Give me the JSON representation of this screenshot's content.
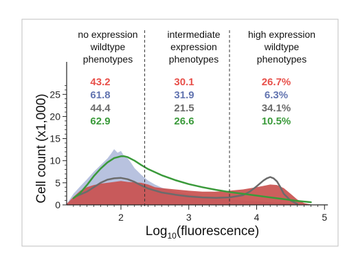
{
  "chart_data": {
    "type": "area",
    "xlabel_main": "Log",
    "xlabel_sub": "10",
    "xlabel_rest": "(fluorescence)",
    "ylabel": "Cell count (x1,000)",
    "xlim": [
      1.2,
      5.2
    ],
    "ylim": [
      0,
      28
    ],
    "x_ticks": [
      2,
      3,
      4,
      5
    ],
    "y_ticks": [
      0,
      5,
      10,
      15,
      20,
      25
    ],
    "gates": [
      2.35,
      3.6
    ],
    "region_labels": [
      {
        "lines": [
          "no expression",
          "wildtype",
          "phenotypes"
        ]
      },
      {
        "lines": [
          "intermediate",
          "expression",
          "phenotypes"
        ]
      },
      {
        "lines": [
          "high expression",
          "wildtype",
          "phenotypes"
        ]
      }
    ],
    "percent_table": {
      "colors": [
        "#e8504a",
        "#6274b0",
        "#6b6b6b",
        "#3a9a3a"
      ],
      "rows": [
        [
          "43.2",
          "30.1",
          "26.7%"
        ],
        [
          "61.8",
          "31.9",
          "6.3%"
        ],
        [
          "44.4",
          "21.5",
          "34.1%"
        ],
        [
          "62.9",
          "26.6",
          "10.5%"
        ]
      ]
    },
    "series": [
      {
        "style": "filled-histogram",
        "color": "#b8c2df",
        "x": [
          1.2,
          1.3,
          1.4,
          1.5,
          1.6,
          1.7,
          1.8,
          1.85,
          1.9,
          1.95,
          2.0,
          2.05,
          2.1,
          2.15,
          2.2,
          2.3,
          2.4,
          2.5,
          2.6,
          2.8,
          3.0,
          3.2,
          3.4,
          3.6,
          3.8,
          4.0,
          4.2,
          4.4,
          4.6
        ],
        "values": [
          0.2,
          2.5,
          4.2,
          5.8,
          7.5,
          9.0,
          10.5,
          11.5,
          12.6,
          11.8,
          12.2,
          11.0,
          10.5,
          9.5,
          8.3,
          6.8,
          5.5,
          4.6,
          3.9,
          3.0,
          2.4,
          1.9,
          1.5,
          1.2,
          1.0,
          0.8,
          0.6,
          0.4,
          0.2
        ]
      },
      {
        "style": "filled-histogram",
        "color": "#c9514f",
        "x": [
          1.2,
          1.3,
          1.4,
          1.5,
          1.6,
          1.7,
          1.8,
          1.9,
          2.0,
          2.1,
          2.2,
          2.3,
          2.4,
          2.5,
          2.6,
          2.8,
          3.0,
          3.2,
          3.4,
          3.6,
          3.8,
          4.0,
          4.1,
          4.2,
          4.3,
          4.4,
          4.5,
          4.6,
          4.7,
          4.8,
          4.9
        ],
        "values": [
          0.2,
          1.8,
          3.2,
          4.0,
          4.5,
          4.8,
          5.0,
          5.2,
          5.4,
          5.2,
          5.1,
          5.0,
          4.6,
          4.0,
          3.8,
          3.5,
          3.2,
          3.0,
          3.0,
          3.2,
          3.5,
          4.0,
          4.3,
          4.6,
          4.5,
          3.8,
          2.5,
          1.2,
          0.4,
          0.1,
          0.0
        ]
      },
      {
        "style": "line",
        "color": "#6b6b6b",
        "x": [
          1.35,
          1.5,
          1.6,
          1.7,
          1.8,
          1.9,
          2.0,
          2.1,
          2.2,
          2.3,
          2.4,
          2.6,
          2.8,
          3.0,
          3.2,
          3.4,
          3.6,
          3.8,
          3.9,
          4.0,
          4.1,
          4.15,
          4.2,
          4.25,
          4.3,
          4.35,
          4.4,
          4.5,
          4.6
        ],
        "values": [
          2.0,
          3.0,
          4.0,
          5.0,
          5.7,
          6.0,
          6.1,
          5.8,
          5.2,
          4.4,
          3.7,
          2.8,
          2.3,
          1.9,
          1.7,
          1.6,
          1.7,
          2.2,
          3.0,
          4.2,
          5.5,
          6.0,
          6.3,
          6.0,
          5.3,
          4.0,
          2.5,
          1.0,
          0.2
        ]
      },
      {
        "style": "line",
        "color": "#3a9a3a",
        "x": [
          1.3,
          1.4,
          1.5,
          1.6,
          1.7,
          1.8,
          1.9,
          2.0,
          2.05,
          2.1,
          2.2,
          2.3,
          2.4,
          2.5,
          2.6,
          2.8,
          3.0,
          3.2,
          3.4,
          3.6,
          3.8,
          4.0,
          4.2,
          4.4,
          4.6,
          4.8
        ],
        "values": [
          1.5,
          2.7,
          4.5,
          6.5,
          8.2,
          9.6,
          10.6,
          11.0,
          11.0,
          10.8,
          10.0,
          9.0,
          8.1,
          7.4,
          6.7,
          5.6,
          4.7,
          4.0,
          3.4,
          2.9,
          2.5,
          2.1,
          1.7,
          1.3,
          0.9,
          0.6
        ]
      }
    ]
  }
}
